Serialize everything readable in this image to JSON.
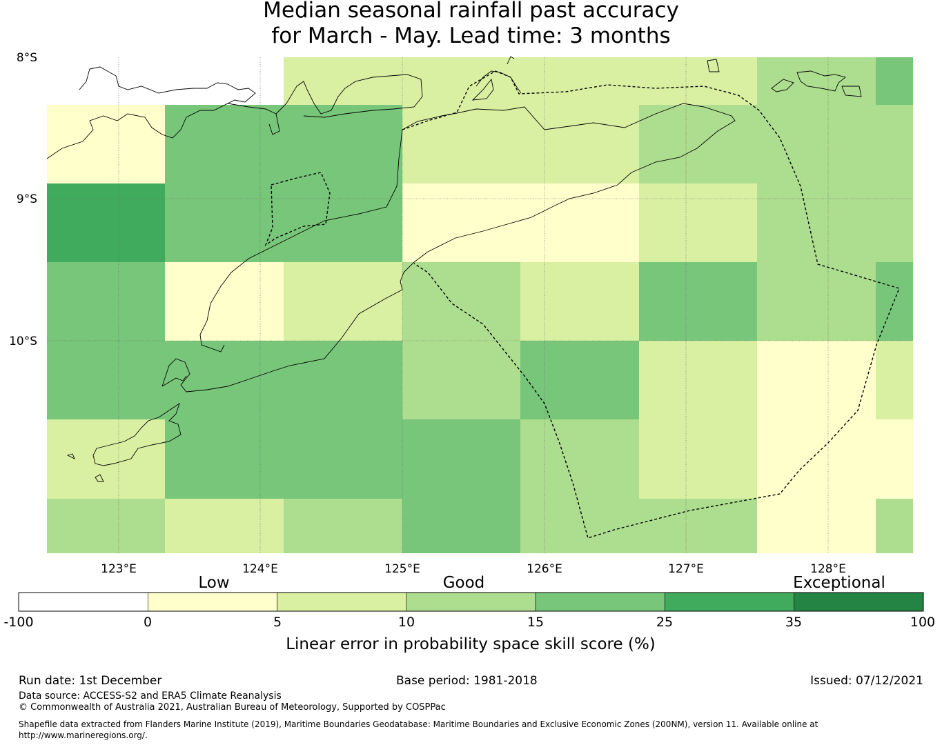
{
  "title": {
    "line1": "Median seasonal rainfall past accuracy",
    "line2": "for March - May. Lead time: 3 months"
  },
  "map": {
    "lat_labels": [
      "8°S",
      "9°S",
      "10°S"
    ],
    "lon_labels": [
      "123°E",
      "124°E",
      "125°E",
      "126°E",
      "127°E",
      "128°E"
    ],
    "grid_skill_values": [
      [
        null,
        null,
        6,
        6,
        6,
        6,
        12,
        20
      ],
      [
        3,
        20,
        20,
        6,
        6,
        12,
        12,
        12
      ],
      [
        30,
        20,
        20,
        3,
        3,
        6,
        12,
        12
      ],
      [
        20,
        3,
        6,
        12,
        6,
        20,
        12,
        20
      ],
      [
        20,
        20,
        20,
        12,
        20,
        6,
        3,
        6
      ],
      [
        6,
        20,
        20,
        20,
        12,
        6,
        3,
        3
      ],
      [
        12,
        6,
        12,
        20,
        12,
        12,
        3,
        12
      ]
    ]
  },
  "colorbar": {
    "category_labels": [
      "Low",
      "Good",
      "Exceptional"
    ],
    "tick_labels": [
      "-100",
      "0",
      "5",
      "10",
      "15",
      "25",
      "35",
      "100"
    ],
    "colors": [
      "#ffffff",
      "#ffffcc",
      "#d9f0a3",
      "#addd8e",
      "#78c679",
      "#41ab5d",
      "#238443"
    ],
    "label": "Linear error in probability space skill score (%)"
  },
  "footer": {
    "run_date": "Run date: 1st December",
    "base_period": "Base period: 1981-2018",
    "issued": "Issued: 07/12/2021",
    "data_source": "Data source: ACCESS-S2 and ERA5 Climate Reanalysis",
    "copyright": "© Commonwealth of Australia 2021, Australian Bureau of Meteorology, Supported by COSPPac",
    "shapefile_line1": "Shapefile data extracted from Flanders Marine Institute (2019), Maritime Boundaries Geodatabase: Maritime Boundaries and Exclusive Economic Zones (200NM), version 11. Available online at",
    "shapefile_line2": "http://www.marineregions.org/."
  }
}
